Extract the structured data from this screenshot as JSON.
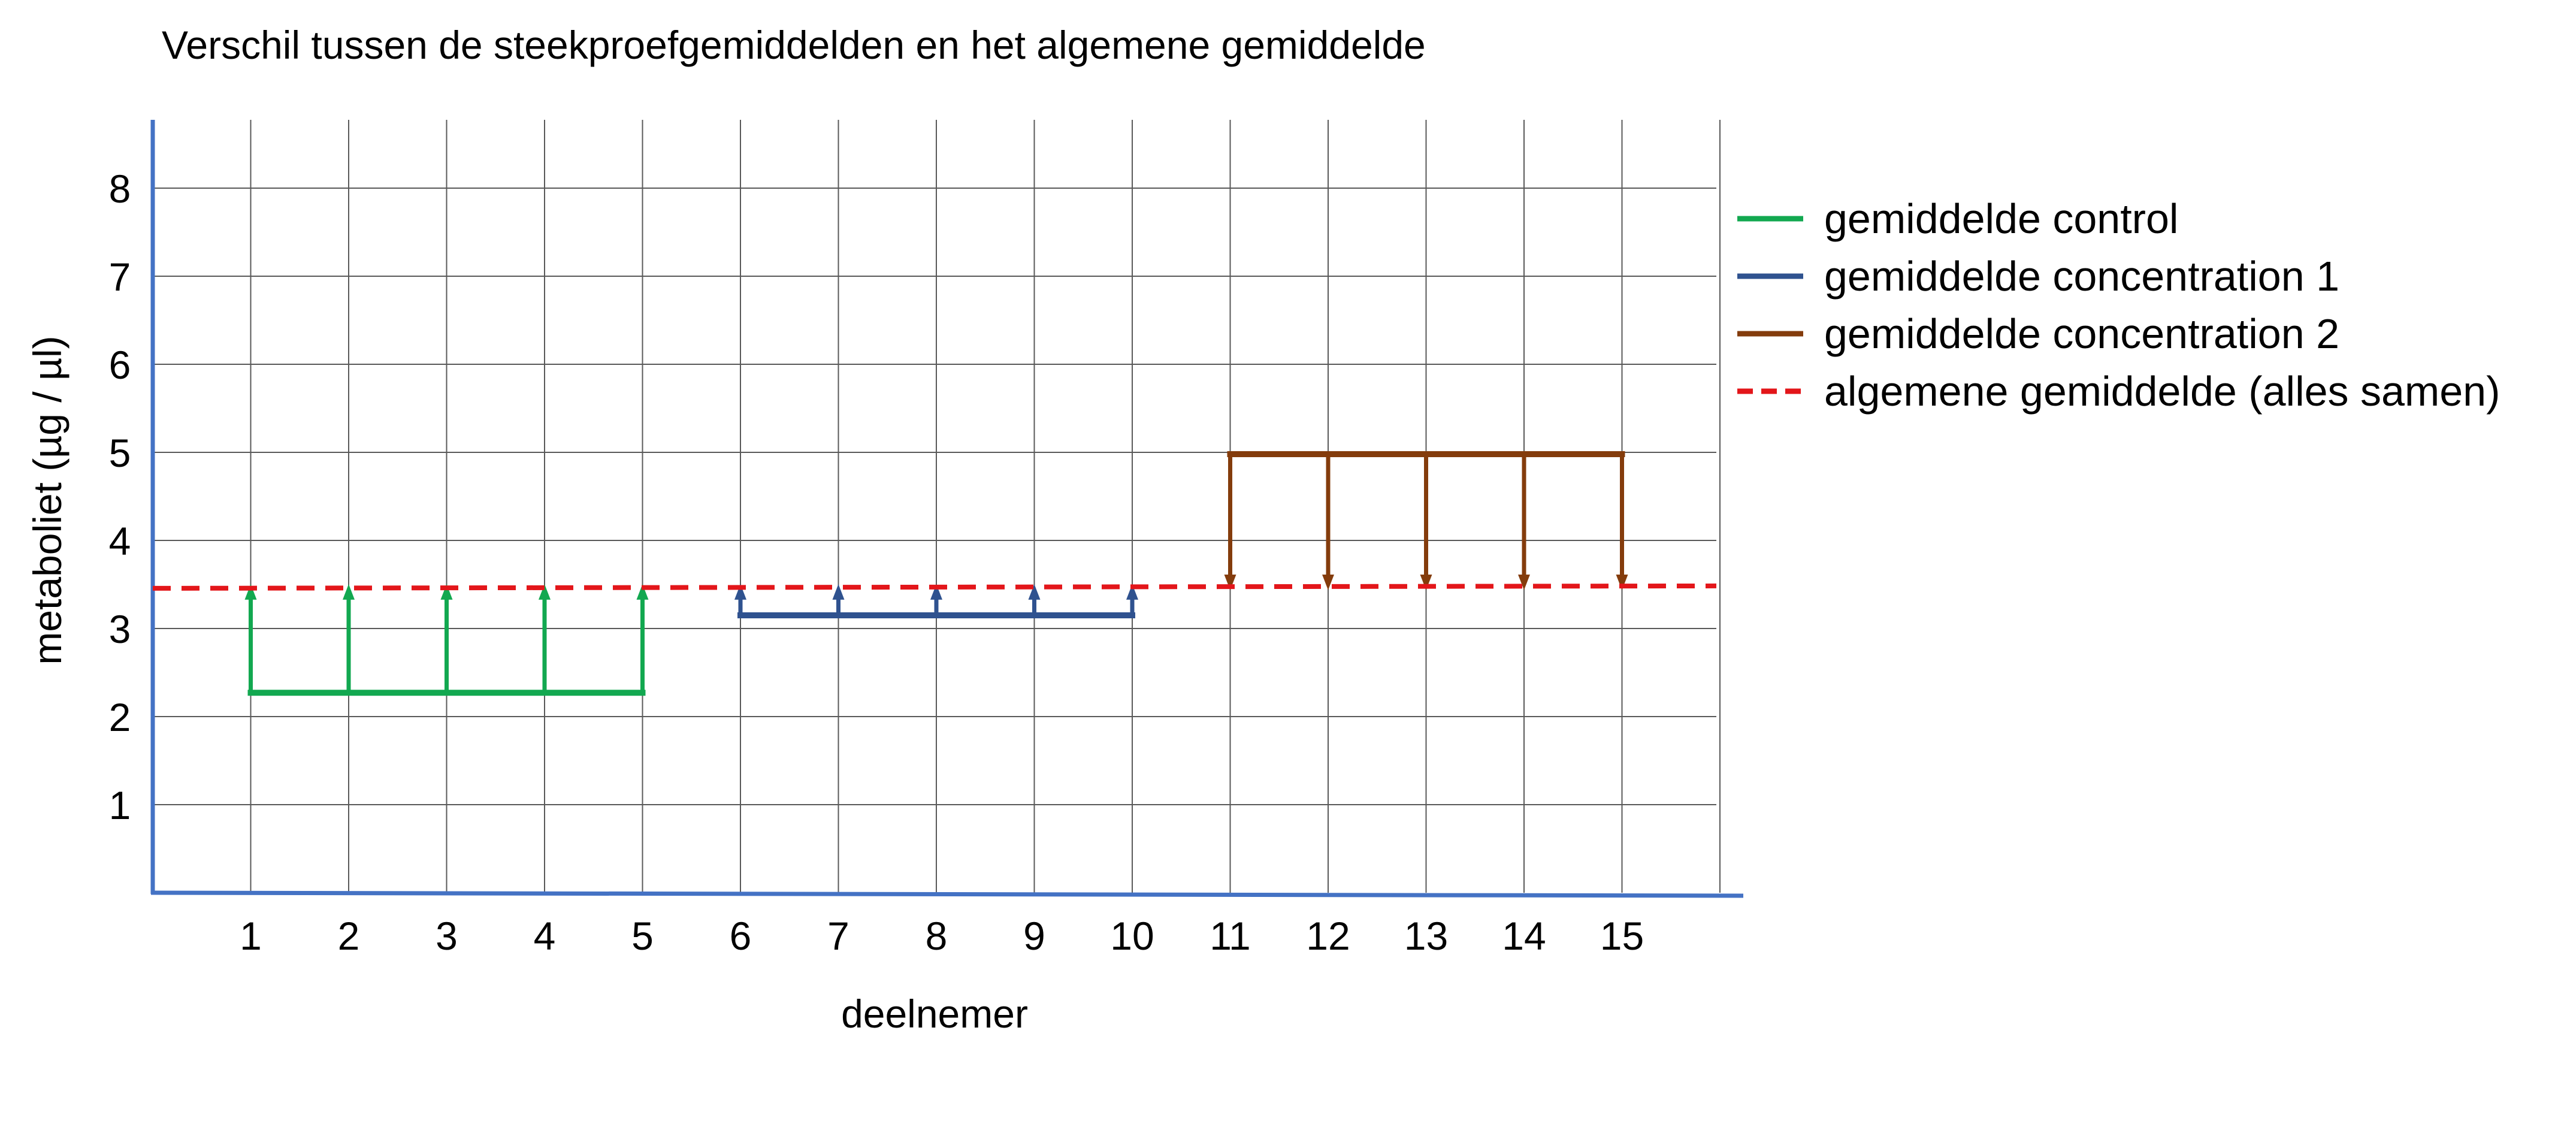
{
  "chart_data": {
    "type": "line",
    "title": "Verschil tussen de steekproefgemiddelden en het algemene gemiddelde",
    "xlabel": "deelnemer",
    "ylabel": "metaboliet (µg / µl)",
    "categories": [
      "1",
      "2",
      "3",
      "4",
      "5",
      "6",
      "7",
      "8",
      "9",
      "10",
      "11",
      "12",
      "13",
      "14",
      "15"
    ],
    "yticks": [
      "1",
      "2",
      "3",
      "4",
      "5",
      "6",
      "7",
      "8"
    ],
    "ylim": [
      0,
      8.8
    ],
    "xlim": [
      0,
      16
    ],
    "grid": true,
    "legend_position": "right",
    "series": [
      {
        "name": "gemiddelde control",
        "color": "#12A850",
        "x": [
          1,
          2,
          3,
          4,
          5
        ],
        "value": 2.27
      },
      {
        "name": "gemiddelde concentration 1",
        "color": "#2F528F",
        "x": [
          6,
          7,
          8,
          9,
          10
        ],
        "value": 3.15
      },
      {
        "name": "gemiddelde concentration 2",
        "color": "#843C0C",
        "x": [
          11,
          12,
          13,
          14,
          15
        ],
        "value": 4.98
      },
      {
        "name": "algemene gemiddelde (alles samen)",
        "color": "#E3161A",
        "dashed": true,
        "value": 3.47
      }
    ]
  }
}
